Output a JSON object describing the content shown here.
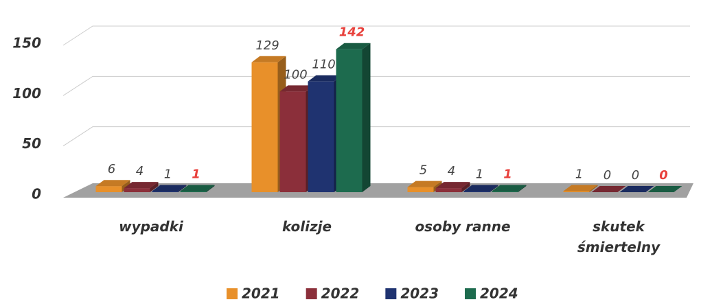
{
  "chart_data": {
    "type": "bar3d",
    "categories": [
      "wypadki",
      "kolizje",
      "osoby ranne",
      "skutek śmiertelny"
    ],
    "series": [
      {
        "name": "2021",
        "color": "#e8902a",
        "label_color": "#444444",
        "values": [
          6,
          129,
          5,
          1
        ]
      },
      {
        "name": "2022",
        "color": "#8b2f3a",
        "label_color": "#444444",
        "values": [
          4,
          100,
          4,
          0
        ]
      },
      {
        "name": "2023",
        "color": "#1f3370",
        "label_color": "#444444",
        "values": [
          1,
          110,
          1,
          0
        ]
      },
      {
        "name": "2024",
        "color": "#1d6b4e",
        "label_color": "#e8413c",
        "values": [
          1,
          142,
          1,
          0
        ]
      }
    ],
    "ylim": [
      0,
      150
    ],
    "yticks": [
      0,
      50,
      100,
      150
    ],
    "grid": true,
    "legend": "bottom"
  }
}
